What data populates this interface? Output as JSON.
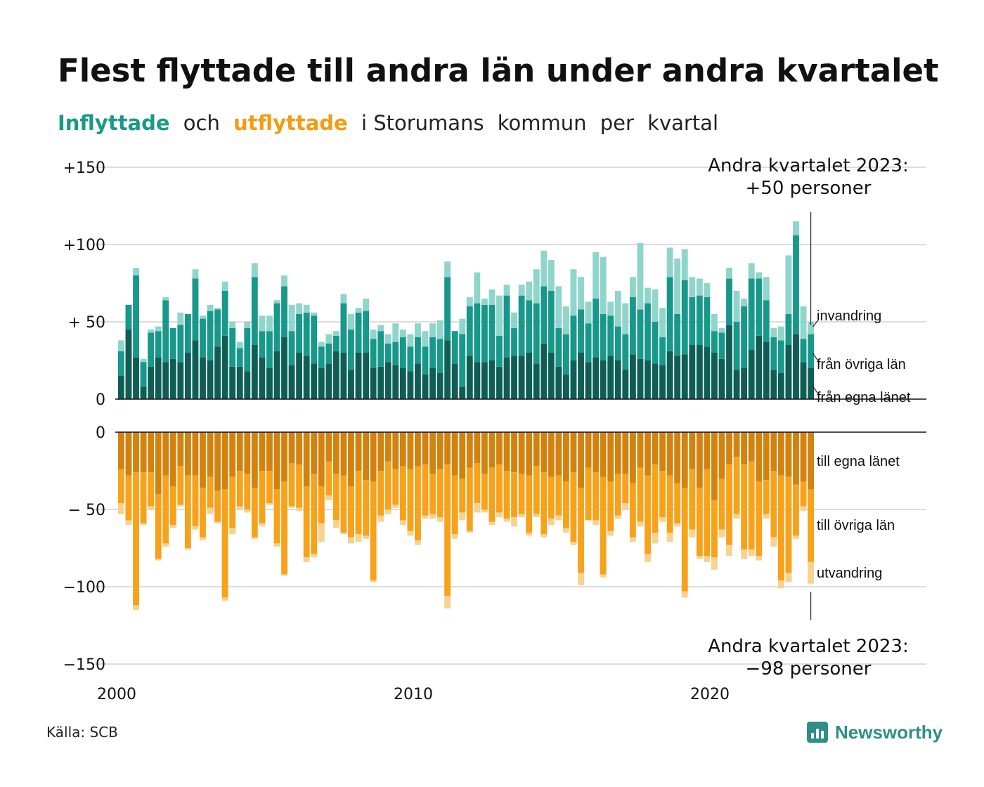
{
  "title": "Flest flyttade till andra län under andra kvartalet",
  "subtitle": {
    "part1": "Inflyttade",
    "part2": "och",
    "part3": "utflyttade",
    "part4": "i Storumans",
    "part5": "kommun",
    "part6": "per",
    "part7": "kvartal"
  },
  "source": "Källa: SCB",
  "brand": "Newsworthy",
  "colors": {
    "in_own": "#0f5e56",
    "in_other": "#17988a",
    "in_immig": "#8fd5cb",
    "out_own": "#d2830f",
    "out_other": "#f7a21b",
    "out_emig": "#f7d290",
    "grid": "#dddddd"
  },
  "chart_data": {
    "type": "bar",
    "stacked": true,
    "x_start": 2000,
    "x_step": 0.25,
    "xticks": [
      "2000",
      "2010",
      "2020"
    ],
    "yticks": [
      "+150",
      "+100",
      "+ 50",
      "0",
      "0",
      "− 50",
      "−100",
      "−150"
    ],
    "ylim_in": [
      0,
      150
    ],
    "ylim_out": [
      -150,
      0
    ],
    "annotation_in": [
      "Andra kvartalet 2023:",
      "+50 personer"
    ],
    "annotation_out": [
      "Andra kvartalet 2023:",
      "−98 personer"
    ],
    "series_labels_in": [
      "invandring",
      "från övriga län",
      "från egna länet"
    ],
    "series_labels_out": [
      "till egna länet",
      "till övriga län",
      "utvandring"
    ],
    "in_own": [
      15,
      45,
      27,
      8,
      21,
      27,
      24,
      26,
      24,
      30,
      38,
      27,
      25,
      34,
      41,
      21,
      21,
      18,
      35,
      27,
      20,
      31,
      40,
      22,
      30,
      28,
      23,
      20,
      23,
      31,
      30,
      19,
      30,
      30,
      20,
      21,
      24,
      22,
      20,
      18,
      23,
      16,
      20,
      17,
      38,
      23,
      8,
      28,
      24,
      24,
      25,
      21,
      27,
      28,
      28,
      30,
      23,
      36,
      30,
      21,
      16,
      25,
      30,
      24,
      27,
      25,
      28,
      25,
      19,
      29,
      26,
      25,
      23,
      22,
      31,
      28,
      29,
      35,
      35,
      34,
      30,
      26,
      48,
      19,
      20,
      32,
      41,
      37,
      19,
      17,
      35,
      42,
      24,
      20
    ],
    "in_other": [
      16,
      16,
      53,
      16,
      22,
      17,
      40,
      20,
      24,
      25,
      40,
      25,
      32,
      24,
      29,
      25,
      12,
      28,
      44,
      17,
      24,
      31,
      33,
      22,
      25,
      28,
      31,
      14,
      13,
      10,
      32,
      26,
      26,
      27,
      19,
      23,
      12,
      15,
      20,
      16,
      17,
      18,
      20,
      22,
      41,
      21,
      34,
      32,
      38,
      37,
      36,
      20,
      40,
      18,
      39,
      34,
      39,
      37,
      40,
      25,
      26,
      29,
      28,
      25,
      38,
      30,
      26,
      22,
      23,
      37,
      32,
      37,
      27,
      18,
      48,
      27,
      48,
      31,
      32,
      32,
      14,
      17,
      30,
      31,
      40,
      46,
      37,
      27,
      21,
      21,
      20,
      64,
      15,
      22
    ],
    "in_immig": [
      7,
      0,
      5,
      2,
      2,
      3,
      2,
      0,
      8,
      0,
      6,
      2,
      4,
      1,
      6,
      4,
      4,
      4,
      9,
      10,
      10,
      2,
      7,
      17,
      7,
      5,
      2,
      3,
      6,
      3,
      6,
      10,
      3,
      8,
      6,
      4,
      6,
      12,
      5,
      8,
      9,
      10,
      9,
      12,
      10,
      0,
      10,
      6,
      20,
      4,
      10,
      26,
      7,
      10,
      7,
      12,
      22,
      23,
      20,
      27,
      18,
      30,
      21,
      14,
      30,
      37,
      9,
      23,
      20,
      13,
      43,
      10,
      21,
      19,
      19,
      36,
      20,
      13,
      11,
      9,
      11,
      3,
      7,
      20,
      5,
      10,
      4,
      15,
      6,
      9,
      38,
      9,
      21,
      8
    ],
    "out_own": [
      24,
      28,
      26,
      26,
      26,
      40,
      28,
      35,
      22,
      28,
      28,
      36,
      29,
      38,
      37,
      29,
      25,
      27,
      36,
      25,
      25,
      37,
      32,
      20,
      21,
      35,
      27,
      35,
      19,
      27,
      28,
      35,
      25,
      31,
      32,
      25,
      19,
      24,
      22,
      24,
      22,
      21,
      27,
      24,
      21,
      28,
      30,
      23,
      20,
      27,
      23,
      21,
      25,
      26,
      27,
      28,
      22,
      26,
      29,
      28,
      32,
      26,
      36,
      23,
      26,
      29,
      32,
      27,
      27,
      33,
      23,
      28,
      21,
      25,
      28,
      33,
      36,
      24,
      36,
      24,
      44,
      30,
      21,
      16,
      21,
      19,
      32,
      31,
      25,
      28,
      29,
      34,
      32,
      37
    ],
    "out_other": [
      22,
      29,
      86,
      33,
      22,
      42,
      44,
      25,
      25,
      47,
      33,
      32,
      20,
      20,
      70,
      33,
      23,
      23,
      32,
      34,
      21,
      35,
      60,
      28,
      28,
      46,
      52,
      24,
      22,
      30,
      37,
      33,
      41,
      36,
      64,
      29,
      31,
      23,
      35,
      40,
      48,
      33,
      26,
      31,
      85,
      38,
      22,
      41,
      26,
      23,
      35,
      31,
      31,
      29,
      26,
      37,
      31,
      40,
      27,
      26,
      30,
      45,
      55,
      34,
      31,
      63,
      32,
      27,
      19,
      35,
      35,
      51,
      44,
      30,
      37,
      26,
      67,
      39,
      44,
      56,
      37,
      33,
      52,
      37,
      55,
      57,
      48,
      22,
      43,
      68,
      62,
      33,
      16,
      47
    ],
    "out_emig": [
      7,
      3,
      3,
      1,
      2,
      1,
      2,
      2,
      1,
      1,
      2,
      2,
      4,
      1,
      2,
      4,
      2,
      2,
      1,
      2,
      1,
      2,
      1,
      1,
      2,
      3,
      2,
      12,
      3,
      5,
      1,
      4,
      5,
      2,
      1,
      4,
      3,
      2,
      3,
      3,
      3,
      2,
      3,
      3,
      8,
      3,
      5,
      1,
      6,
      2,
      2,
      3,
      2,
      6,
      2,
      2,
      2,
      2,
      4,
      3,
      3,
      2,
      8,
      0,
      3,
      2,
      3,
      2,
      4,
      3,
      3,
      5,
      7,
      3,
      6,
      2,
      4,
      5,
      2,
      4,
      8,
      5,
      7,
      3,
      6,
      4,
      3,
      3,
      6,
      5,
      6,
      2,
      3,
      14
    ]
  }
}
